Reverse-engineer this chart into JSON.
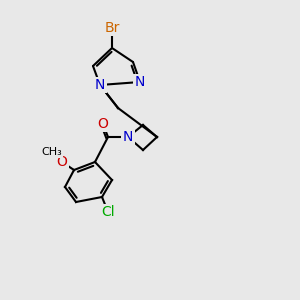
{
  "background_color": "#e8e8e8",
  "bond_color": "#000000",
  "bond_lw": 1.5,
  "atom_colors": {
    "Br": "#cc6600",
    "N": "#0000cc",
    "O": "#cc0000",
    "Cl": "#00aa00",
    "C": "#000000"
  },
  "font_size": 10,
  "font_size_small": 9
}
